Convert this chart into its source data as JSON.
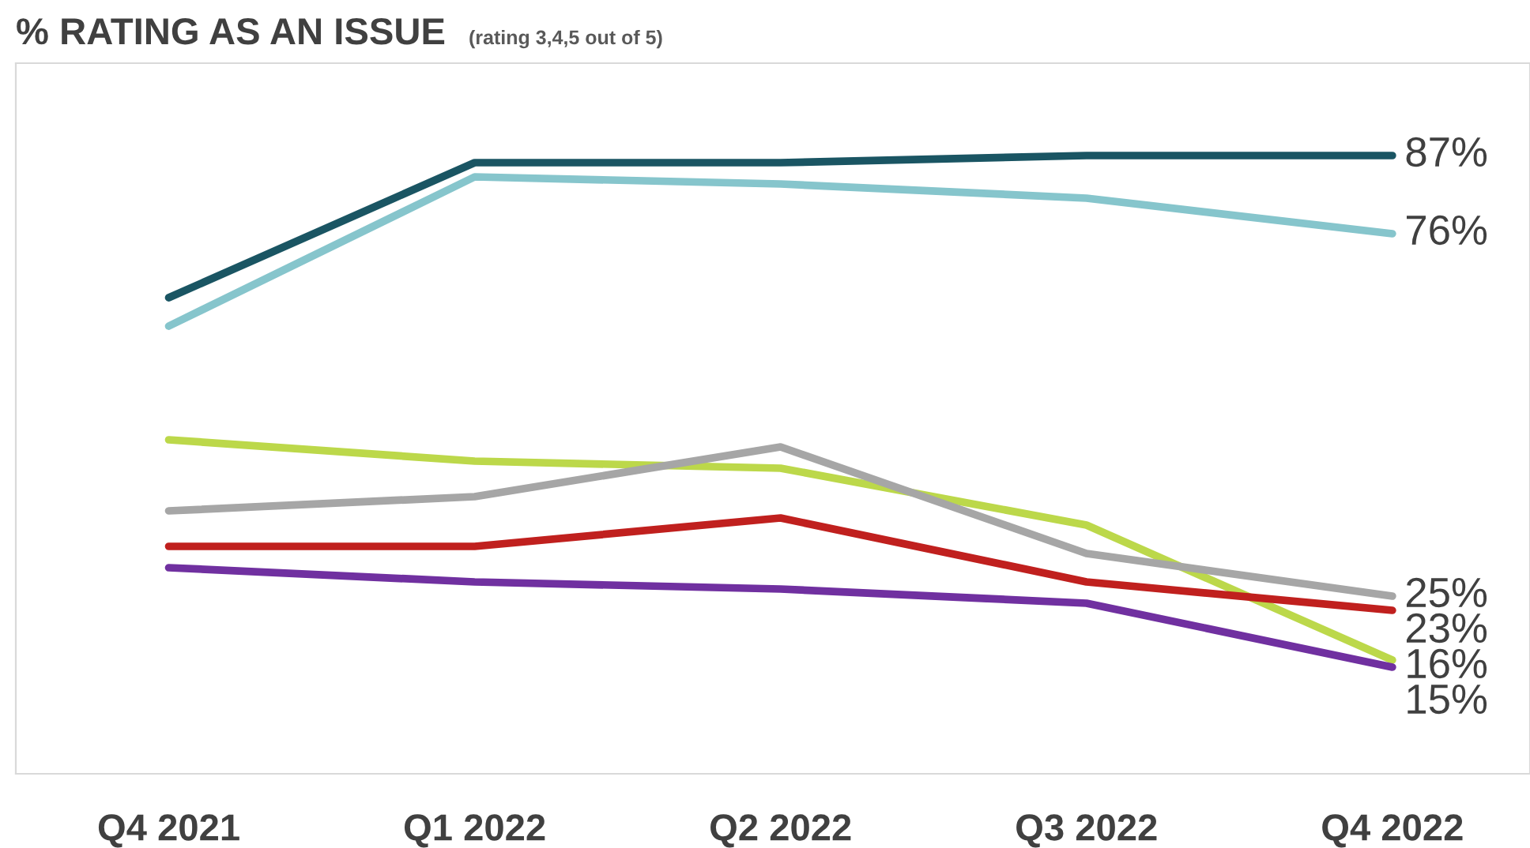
{
  "chart_data": {
    "type": "line",
    "title": "% RATING AS AN ISSUE",
    "subtitle": "(rating 3,4,5 out of 5)",
    "categories": [
      "Q4 2021",
      "Q1 2022",
      "Q2 2022",
      "Q3 2022",
      "Q4 2022"
    ],
    "series": [
      {
        "color": "#1a5563",
        "values": [
          67,
          86,
          86,
          87,
          87
        ],
        "value_labels": [
          null,
          null,
          null,
          null,
          "87%"
        ]
      },
      {
        "color": "#86c5cc",
        "values": [
          63,
          84,
          83,
          81,
          76
        ],
        "value_labels": [
          null,
          null,
          null,
          null,
          "76%"
        ]
      },
      {
        "color": "#bcd84a",
        "values": [
          47,
          44,
          43,
          35,
          16
        ],
        "value_labels": [
          null,
          null,
          null,
          null,
          "16%"
        ]
      },
      {
        "color": "#a6a6a6",
        "values": [
          37,
          39,
          46,
          31,
          25
        ],
        "value_labels": [
          null,
          null,
          null,
          null,
          "25%"
        ]
      },
      {
        "color": "#c0201e",
        "values": [
          32,
          32,
          36,
          27,
          23
        ],
        "value_labels": [
          null,
          null,
          null,
          null,
          "23%"
        ]
      },
      {
        "color": "#7030a0",
        "values": [
          29,
          27,
          26,
          24,
          15
        ],
        "value_labels": [
          null,
          null,
          null,
          null,
          "15%"
        ]
      }
    ],
    "ylim": [
      0,
      100
    ],
    "tick_labels": "x",
    "grid": false,
    "legend": false,
    "marker": "none",
    "line_style": "solid"
  }
}
